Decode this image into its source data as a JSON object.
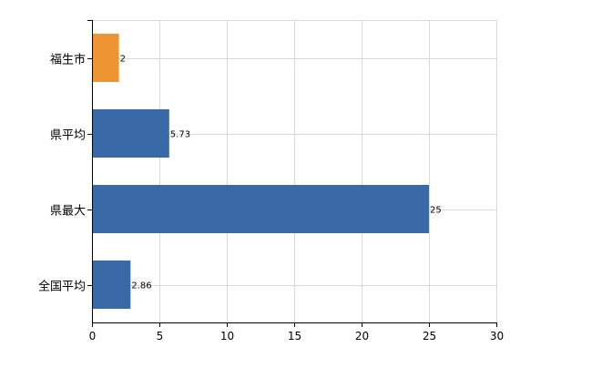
{
  "chart_data": {
    "type": "bar",
    "orientation": "horizontal",
    "categories": [
      "福生市",
      "県平均",
      "県最大",
      "全国平均"
    ],
    "values": [
      2,
      5.73,
      25,
      2.86
    ],
    "data_labels": [
      "2",
      "5.73",
      "25",
      "2.86"
    ],
    "bar_colors": [
      "#ee9533",
      "#3a69a8",
      "#3a69a8",
      "#3a69a8"
    ],
    "xlim": [
      0,
      30
    ],
    "xticks": [
      0,
      5,
      10,
      15,
      20,
      25,
      30
    ],
    "title": "",
    "xlabel": "",
    "ylabel": "",
    "grid": true,
    "legend": "none"
  },
  "colors": {
    "highlight": "#ee9533",
    "default_bar": "#3a69a8",
    "grid": "#d9d9d9",
    "axis": "#000000"
  }
}
